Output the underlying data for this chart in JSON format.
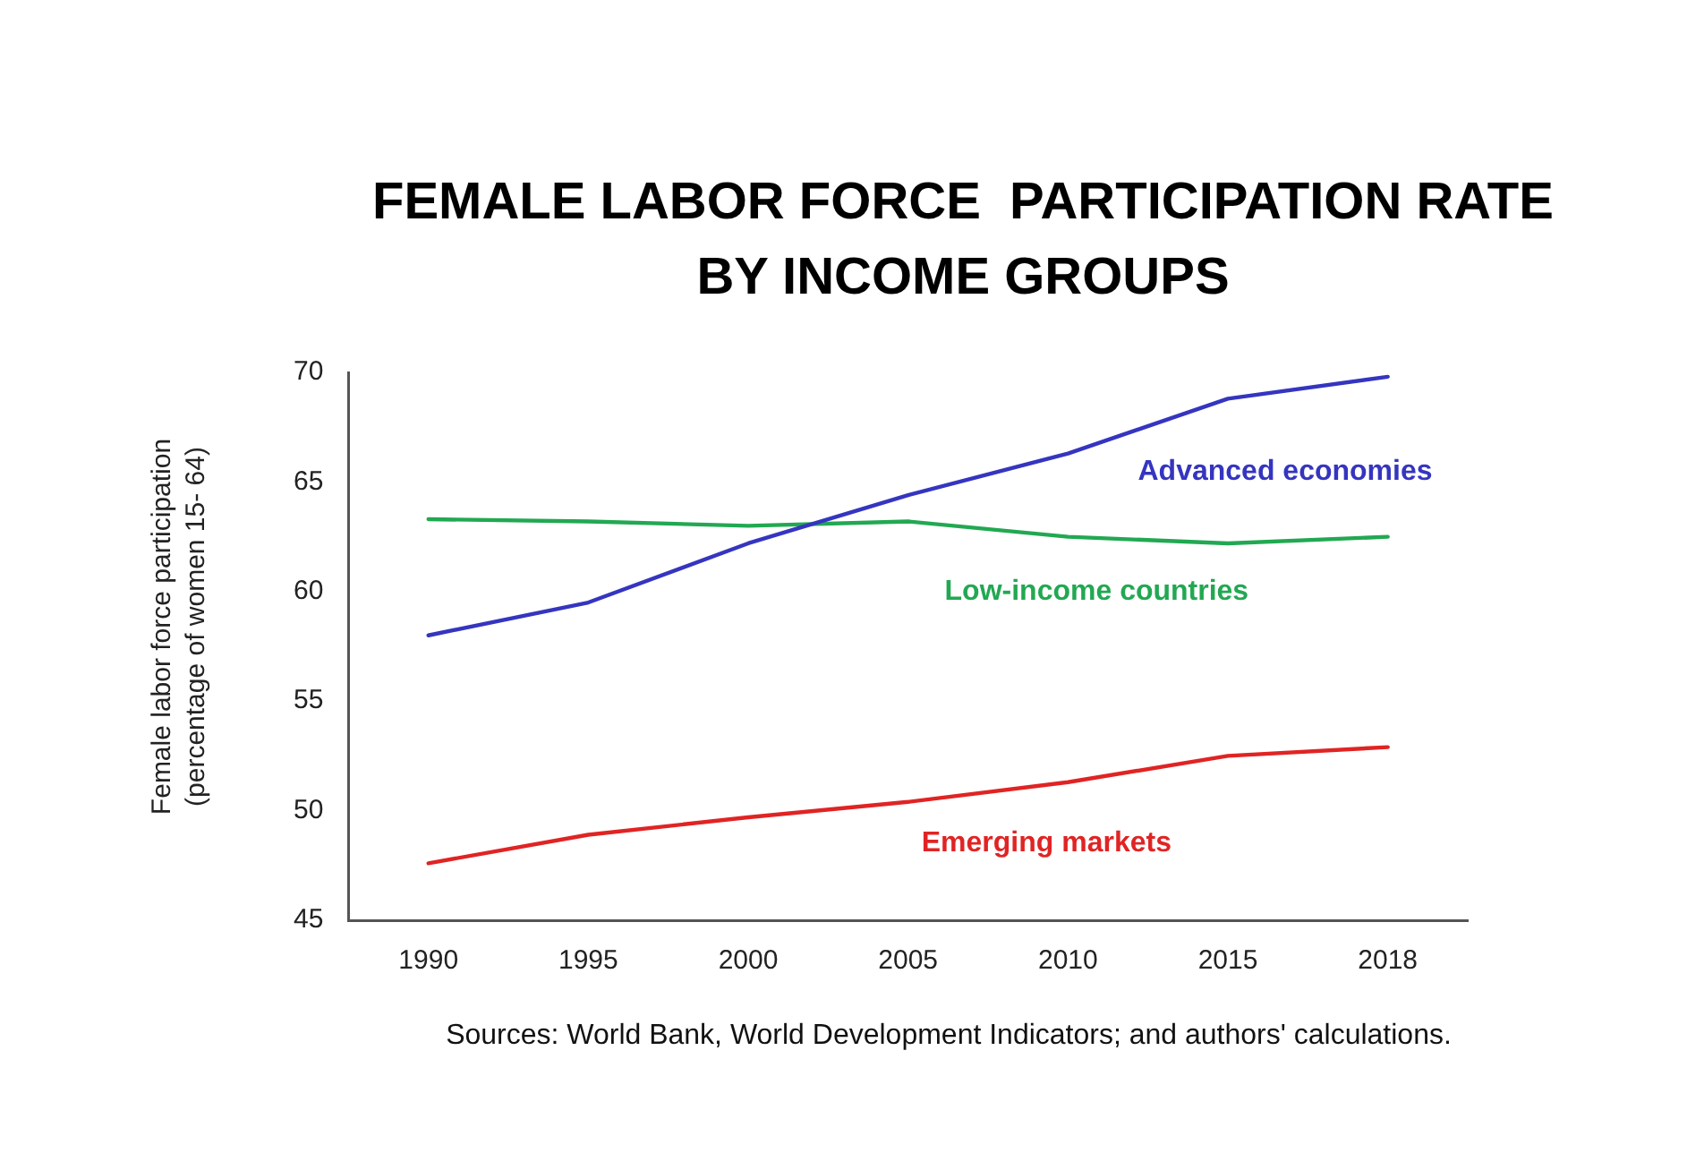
{
  "chart_data": {
    "type": "line",
    "title": "FEMALE LABOR FORCE  PARTICIPATION RATE BY INCOME GROUPS",
    "ylabel": "Female labor force participation (percentage of women 15- 64)",
    "categories": [
      "1990",
      "1995",
      "2000",
      "2005",
      "2010",
      "2015",
      "2018"
    ],
    "series": [
      {
        "name": "Advanced economies",
        "color": "#3535c0",
        "values": [
          58,
          59.5,
          62.2,
          64.4,
          66.3,
          68.8,
          69.8
        ]
      },
      {
        "name": "Low-income countries",
        "color": "#22a852",
        "values": [
          63.3,
          63.2,
          63,
          63.2,
          62.5,
          62.2,
          62.5
        ]
      },
      {
        "name": "Emerging markets",
        "color": "#e02424",
        "values": [
          47.6,
          48.9,
          49.7,
          50.4,
          51.3,
          52.5,
          52.9
        ]
      }
    ],
    "ylim": [
      45,
      70
    ],
    "yticks": [
      45,
      50,
      55,
      60,
      65,
      70
    ],
    "grid": false,
    "legend": false,
    "marker": "none",
    "line_style": "solid",
    "annotations": [
      "Sources: World Bank, World Development Indicators; and authors' calculations."
    ]
  }
}
